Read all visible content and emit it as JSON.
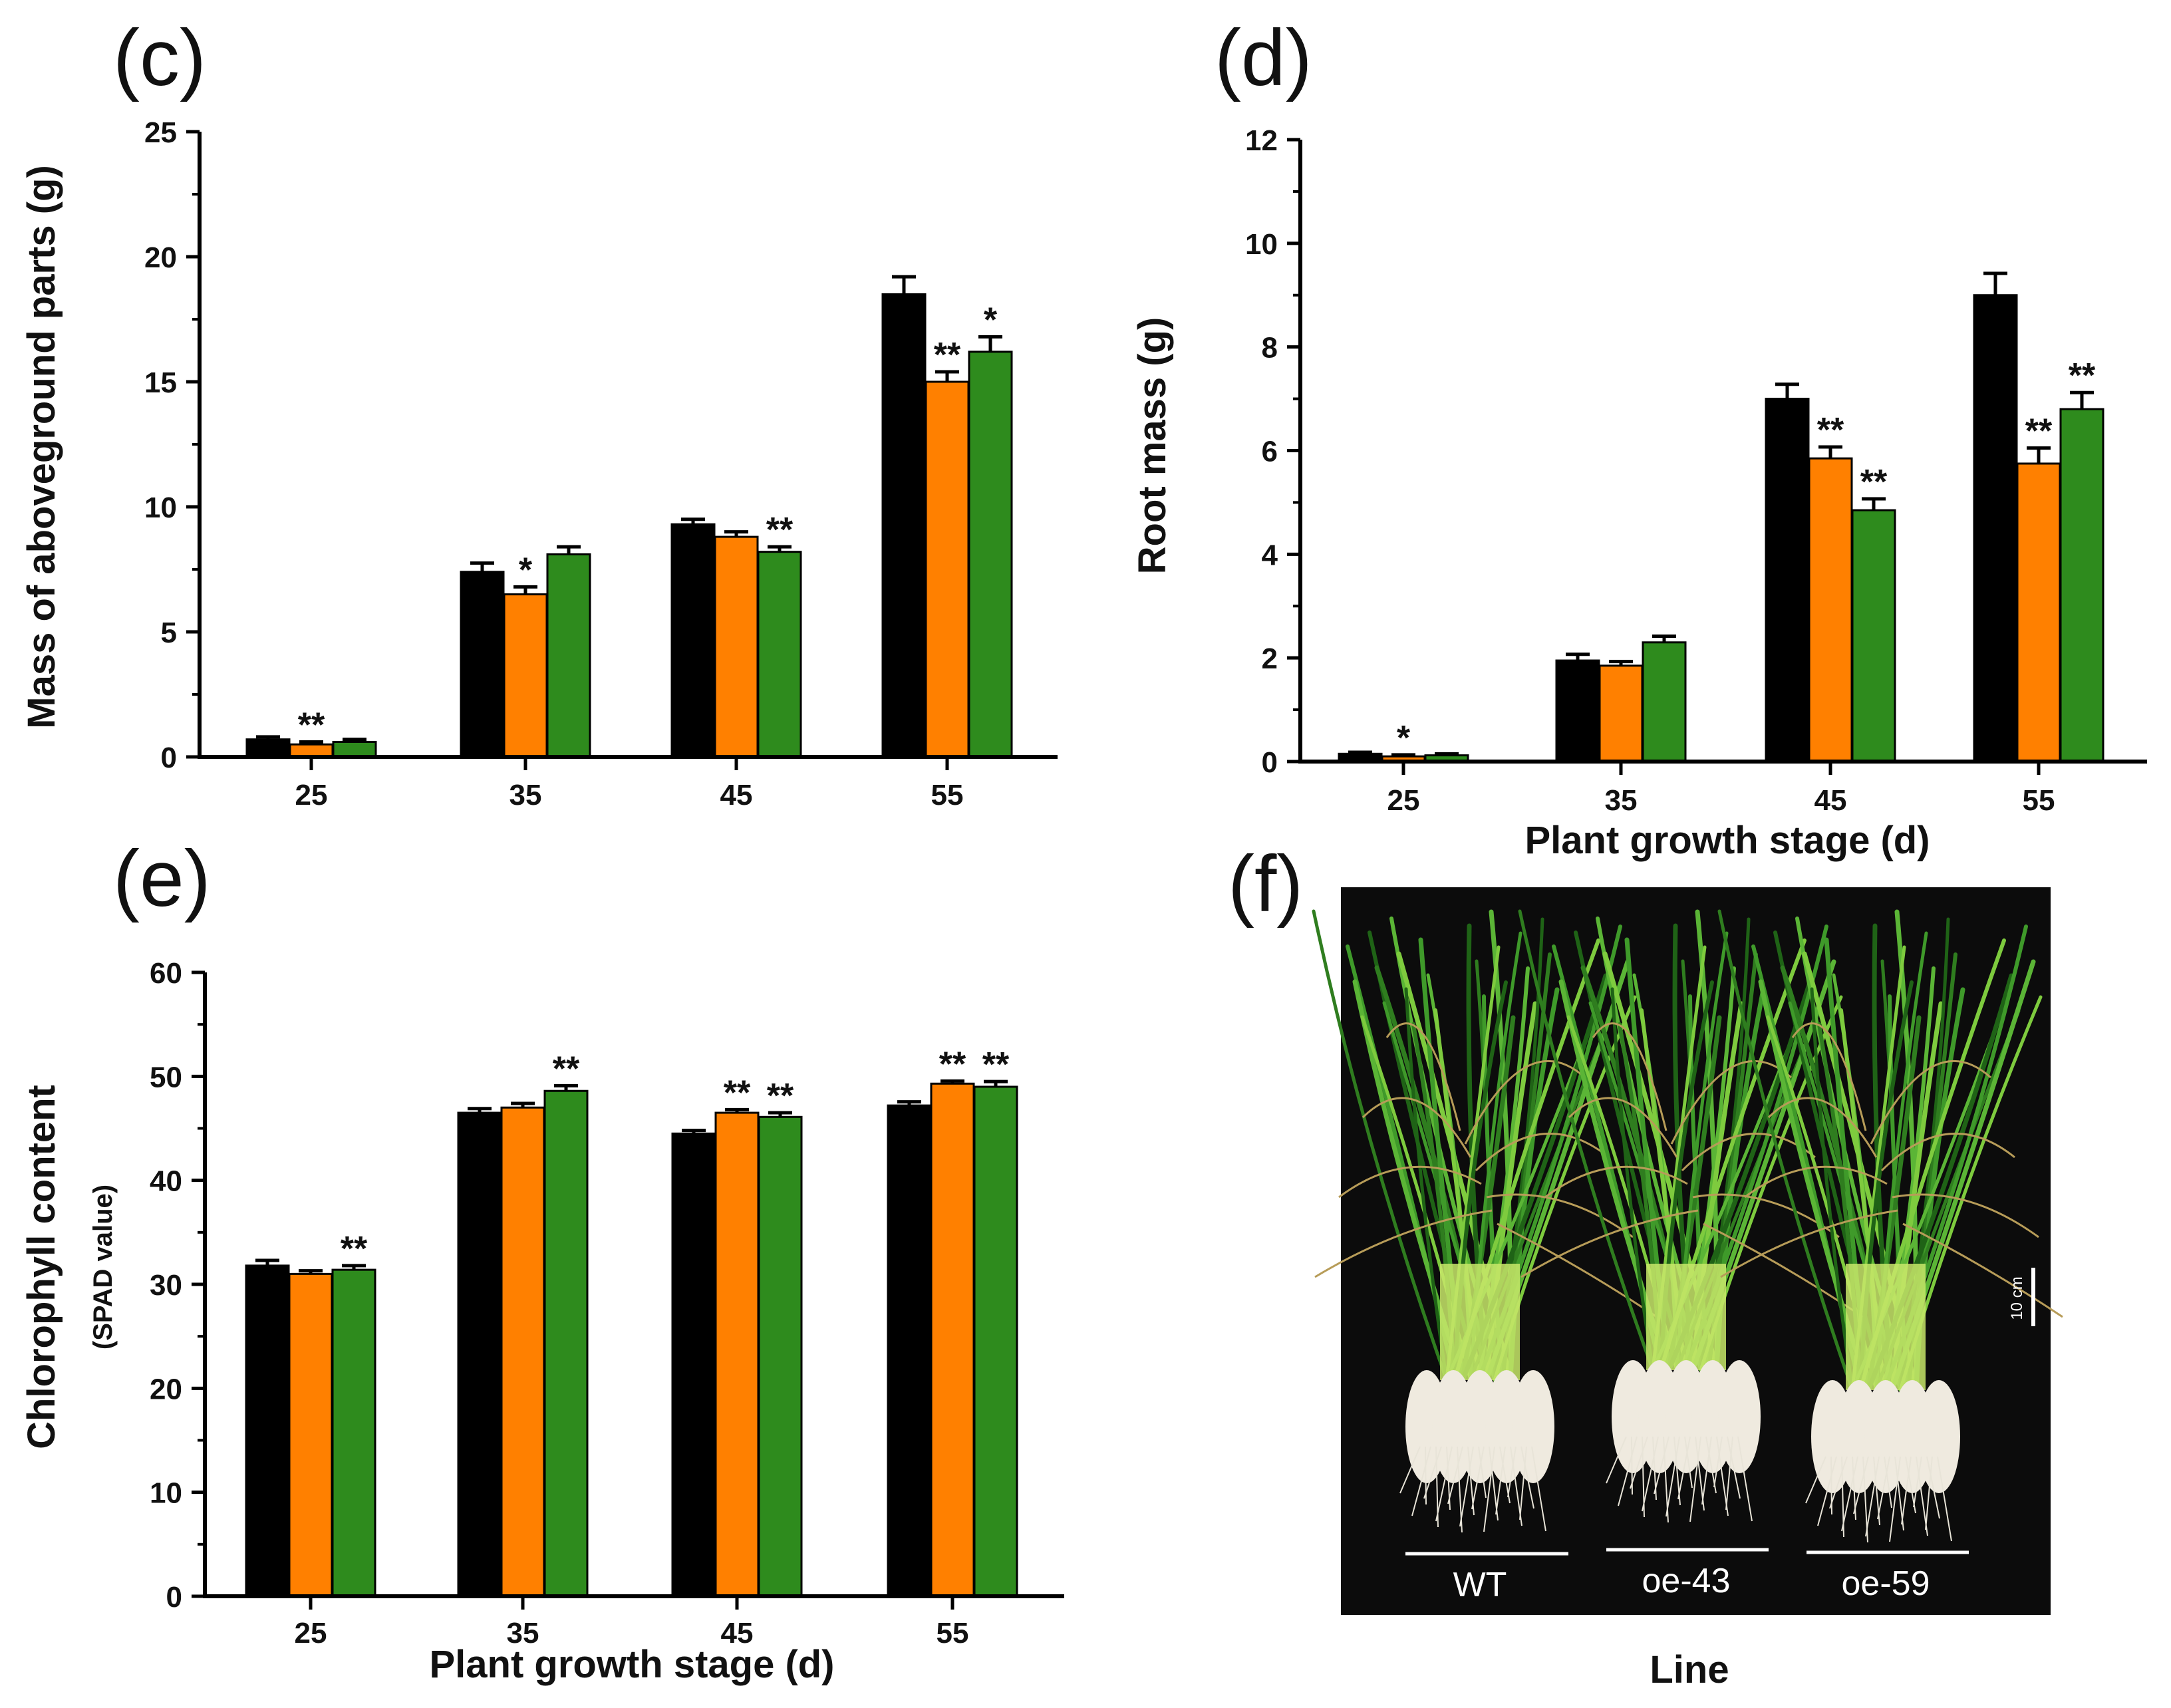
{
  "panels": {
    "c": "(c)",
    "d": "(d)",
    "e": "(e)",
    "f": "(f)"
  },
  "colors": {
    "WT": "#000000",
    "oe-43": "#ff8000",
    "oe-59": "#2e8b1d"
  },
  "chart_data": [
    {
      "panel": "(c)",
      "type": "bar",
      "categories": [
        "25",
        "35",
        "45",
        "55"
      ],
      "ylabel": "Mass of aboveground parts (g)",
      "xlabel": "",
      "ylim": [
        0,
        25
      ],
      "yticks": [
        0,
        5,
        10,
        15,
        20,
        25
      ],
      "series": [
        {
          "values": [
            0.7,
            7.4,
            9.3,
            18.5
          ],
          "errors": [
            0.1,
            0.35,
            0.2,
            0.7
          ],
          "marks": [
            "",
            "",
            "",
            ""
          ]
        },
        {
          "values": [
            0.5,
            6.5,
            8.8,
            15.0
          ],
          "errors": [
            0.1,
            0.3,
            0.2,
            0.4
          ],
          "marks": [
            "**",
            "*",
            "",
            "**"
          ]
        },
        {
          "values": [
            0.6,
            8.1,
            8.2,
            16.2
          ],
          "errors": [
            0.1,
            0.3,
            0.2,
            0.6
          ],
          "marks": [
            "",
            "",
            "**",
            "*"
          ]
        }
      ]
    },
    {
      "panel": "(d)",
      "type": "bar",
      "categories": [
        "25",
        "35",
        "45",
        "55"
      ],
      "ylabel": "Root mass (g)",
      "xlabel": "Plant growth stage (d)",
      "ylim": [
        0,
        12
      ],
      "yticks": [
        0,
        2,
        4,
        6,
        8,
        10,
        12
      ],
      "series": [
        {
          "values": [
            0.15,
            1.95,
            7.0,
            9.0
          ],
          "errors": [
            0.03,
            0.12,
            0.28,
            0.42
          ],
          "marks": [
            "",
            "",
            "",
            ""
          ]
        },
        {
          "values": [
            0.1,
            1.85,
            5.85,
            5.75
          ],
          "errors": [
            0.03,
            0.08,
            0.22,
            0.3
          ],
          "marks": [
            "*",
            "",
            "**",
            "**"
          ]
        },
        {
          "values": [
            0.12,
            2.3,
            4.85,
            6.8
          ],
          "errors": [
            0.03,
            0.12,
            0.22,
            0.32
          ],
          "marks": [
            "",
            "",
            "**",
            "**"
          ]
        }
      ]
    },
    {
      "panel": "(e)",
      "type": "bar",
      "categories": [
        "25",
        "35",
        "45",
        "55"
      ],
      "ylabel": "Chlorophyll content",
      "ylabel_sub": "(SPAD value)",
      "xlabel": "Plant growth stage (d)",
      "ylim": [
        0,
        60
      ],
      "yticks": [
        0,
        10,
        20,
        30,
        40,
        50,
        60
      ],
      "series": [
        {
          "values": [
            31.8,
            46.5,
            44.5,
            47.2
          ],
          "errors": [
            0.5,
            0.4,
            0.3,
            0.35
          ],
          "marks": [
            "",
            "",
            "",
            ""
          ]
        },
        {
          "values": [
            31.0,
            47.0,
            46.5,
            49.3
          ],
          "errors": [
            0.3,
            0.4,
            0.3,
            0.25
          ],
          "marks": [
            "",
            "",
            "**",
            "**"
          ]
        },
        {
          "values": [
            31.4,
            48.6,
            46.1,
            49.0
          ],
          "errors": [
            0.4,
            0.5,
            0.4,
            0.5
          ],
          "marks": [
            "**",
            "**",
            "**",
            "**"
          ]
        }
      ]
    }
  ],
  "photo": {
    "labels": [
      "WT",
      "oe-43",
      "oe-59"
    ],
    "scale_bar": "10 cm",
    "xlabel": "Line"
  }
}
